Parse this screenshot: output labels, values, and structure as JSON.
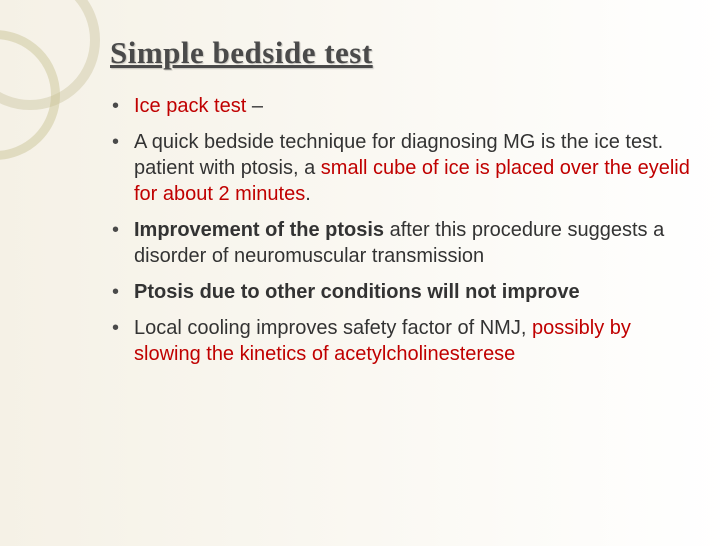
{
  "slide": {
    "title": "Simple bedside test",
    "bullets": [
      {
        "spans": [
          {
            "text": "Ice pack test ",
            "red": true
          },
          {
            "text": "–"
          }
        ]
      },
      {
        "spans": [
          {
            "text": "A quick bedside technique for diagnosing MG is the ice test. patient with ptosis, a "
          },
          {
            "text": "small cube of ice is placed over the eyelid for about 2 minutes",
            "red": true
          },
          {
            "text": "."
          }
        ]
      },
      {
        "spans": [
          {
            "text": "Improvement of the ptosis ",
            "bold": true
          },
          {
            "text": "after this procedure suggests a disorder of neuromuscular transmission"
          }
        ]
      },
      {
        "spans": [
          {
            "text": "Ptosis  due to other conditions will not improve",
            "bold": true
          }
        ]
      },
      {
        "spans": [
          {
            "text": "Local cooling improves safety factor of NMJ, "
          },
          {
            "text": "possibly by slowing the kinetics of acetylcholinesterese",
            "red": true
          }
        ]
      }
    ],
    "colors": {
      "title": "#4a4a4a",
      "body": "#333333",
      "highlight": "#c00000",
      "bg_left": "#f5f1e6",
      "bg_right": "#ffffff",
      "ring": "#d0c9a8"
    },
    "fonts": {
      "title_size_pt": 31,
      "body_size_pt": 20,
      "title_family": "Georgia",
      "body_family": "Verdana"
    }
  }
}
